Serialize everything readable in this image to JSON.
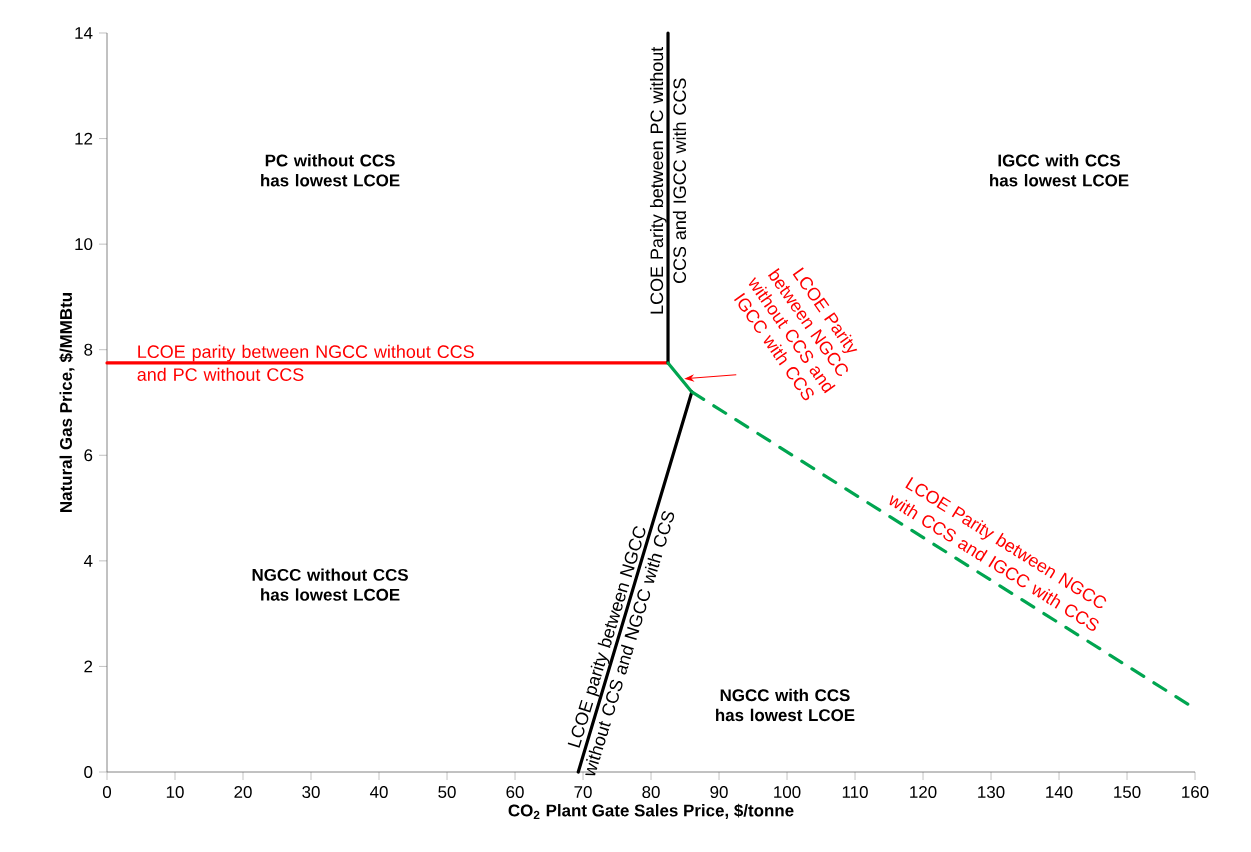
{
  "chart_data": {
    "type": "line",
    "xlabel": "CO$_{2}$ Plant Gate Sales Price, $/tonne",
    "ylabel": "Natural Gas Price, $/MMBtu",
    "xlim": [
      0,
      160
    ],
    "xticks": [
      0,
      10,
      20,
      30,
      40,
      50,
      60,
      70,
      80,
      90,
      100,
      110,
      120,
      130,
      140,
      150,
      160
    ],
    "ylim": [
      0,
      14
    ],
    "yticks": [
      0,
      2,
      4,
      6,
      8,
      10,
      12,
      14
    ],
    "grid": false,
    "marker": "none",
    "series": [
      {
        "color": "#ff0000",
        "line_style": "solid",
        "x": [
          0,
          82.5
        ],
        "values": [
          7.75,
          7.75
        ]
      },
      {
        "color": "#000000",
        "line_style": "solid",
        "x": [
          82.5,
          82.5
        ],
        "values": [
          7.75,
          14
        ]
      },
      {
        "color": "#00a550",
        "line_style": "solid",
        "x": [
          82.5,
          86
        ],
        "values": [
          7.75,
          7.2
        ]
      },
      {
        "color": "#000000",
        "line_style": "solid",
        "x": [
          69.3,
          86
        ],
        "values": [
          0,
          7.2
        ]
      },
      {
        "color": "#00a550",
        "line_style": "dashed",
        "x": [
          86,
          160
        ],
        "values": [
          7.2,
          1.2
        ]
      }
    ],
    "annotations": [
      "PC without CCS has lowest LCOE",
      "IGCC with CCS has lowest LCOE",
      "NGCC without CCS has lowest LCOE",
      "NGCC with CCS has lowest LCOE",
      {
        "text": "LCOE parity between NGCC without CCS and PC without CCS",
        "x": 36,
        "y": 7.75
      },
      {
        "text": "LCOE Parity between PC without CCS and IGCC with CCS",
        "x": 82.5,
        "y": 11.2
      },
      {
        "text": "LCOE parity between NGCC without CCS and NGCC with CCS",
        "x": 75.1,
        "y": 2.5
      },
      {
        "text": "LCOE Parity between NGCC with CCS and IGCC with CCS",
        "x": 129,
        "y": 3.7
      },
      {
        "text": "LCOE Parity between NGCC without CCS and IGCC with CCS",
        "x": 84.3,
        "y": 7.45
      }
    ]
  }
}
